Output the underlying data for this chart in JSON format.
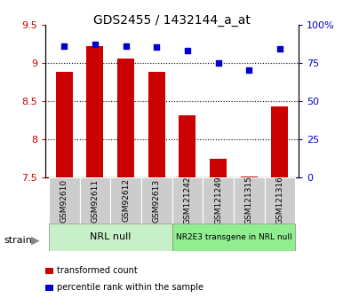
{
  "title": "GDS2455 / 1432144_a_at",
  "samples": [
    "GSM92610",
    "GSM92611",
    "GSM92612",
    "GSM92613",
    "GSM121242",
    "GSM121249",
    "GSM121315",
    "GSM121316"
  ],
  "bar_values": [
    8.88,
    9.22,
    9.05,
    8.88,
    8.31,
    7.75,
    7.51,
    8.43
  ],
  "dot_values": [
    86,
    87,
    86,
    85,
    83,
    75,
    70,
    84
  ],
  "groups": [
    {
      "label": "NRL null",
      "start": 0,
      "end": 4,
      "color": "#c8f0c8"
    },
    {
      "label": "NR2E3 transgene in NRL null",
      "start": 4,
      "end": 8,
      "color": "#90ee90"
    }
  ],
  "bar_color": "#cc0000",
  "dot_color": "#0000cc",
  "ylim_left": [
    7.5,
    9.5
  ],
  "ylim_right": [
    0,
    100
  ],
  "yticks_left": [
    7.5,
    8.0,
    8.5,
    9.0,
    9.5
  ],
  "yticks_right": [
    0,
    25,
    50,
    75,
    100
  ],
  "grid_values": [
    8.0,
    8.5,
    9.0
  ],
  "bar_width": 0.55,
  "bg_color": "#ffffff",
  "tick_label_bg": "#cccccc",
  "legend_items": [
    {
      "label": "transformed count",
      "color": "#cc0000"
    },
    {
      "label": "percentile rank within the sample",
      "color": "#0000cc"
    }
  ],
  "yticklabels_left": [
    "7.5",
    "8",
    "8.5",
    "9",
    "9.5"
  ],
  "yticklabels_right": [
    "0",
    "25",
    "50",
    "75",
    "100%"
  ]
}
